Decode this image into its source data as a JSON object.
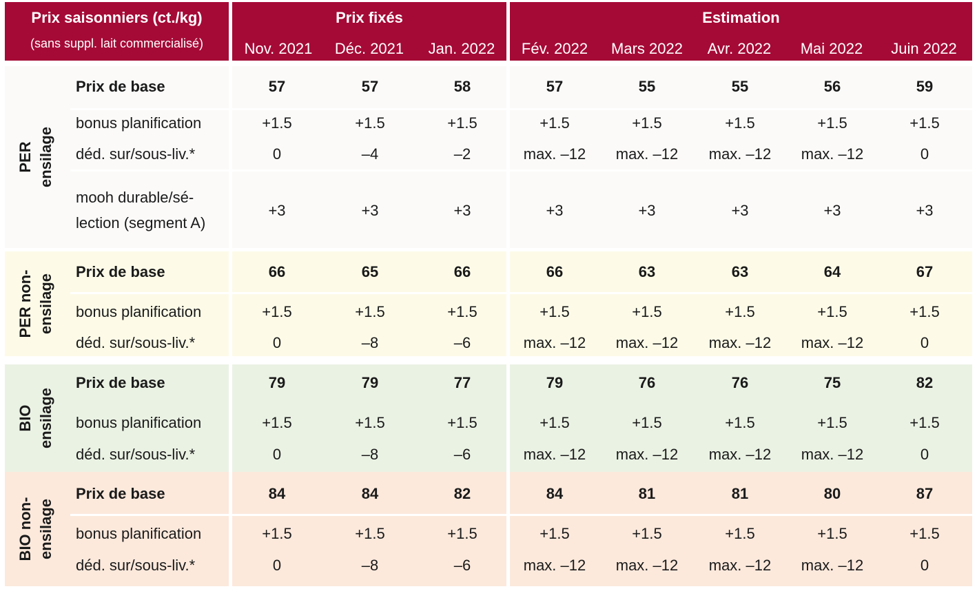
{
  "header": {
    "title": "Prix saisonniers (ct./kg)",
    "subtitle": "(sans suppl. lait commercialisé)",
    "fixed_label": "Prix fixés",
    "estimate_label": "Estimation",
    "months": [
      "Nov. 2021",
      "Déc. 2021",
      "Jan. 2022",
      "Fév. 2022",
      "Mars 2022",
      "Avr. 2022",
      "Mai 2022",
      "Juin 2022"
    ],
    "color": "#a50a36"
  },
  "groups": [
    {
      "label_line1": "PER",
      "label_line2": "ensilage",
      "color": "#fbfaf9",
      "rows": [
        {
          "label": "Prix de base",
          "bold": true,
          "values": [
            "57",
            "57",
            "58",
            "57",
            "55",
            "55",
            "56",
            "59"
          ]
        },
        {
          "label": "bonus planification",
          "bold": false,
          "values": [
            "+1.5",
            "+1.5",
            "+1.5",
            "+1.5",
            "+1.5",
            "+1.5",
            "+1.5",
            "+1.5"
          ]
        },
        {
          "label": "déd. sur/sous-liv.*",
          "bold": false,
          "values": [
            "0",
            "–4",
            "–2",
            "max. –12",
            "max. –12",
            "max. –12",
            "max. –12",
            "0"
          ]
        },
        {
          "label_line1": "mooh durable/sé-",
          "label_line2": "lection (segment A)",
          "bold": false,
          "values": [
            "+3",
            "+3",
            "+3",
            "+3",
            "+3",
            "+3",
            "+3",
            "+3"
          ]
        }
      ]
    },
    {
      "label_line1": "PER non-",
      "label_line2": "ensilage",
      "color": "#fdfbe8",
      "rows": [
        {
          "label": "Prix de base",
          "bold": true,
          "values": [
            "66",
            "65",
            "66",
            "66",
            "63",
            "63",
            "64",
            "67"
          ]
        },
        {
          "label": "bonus planification",
          "bold": false,
          "values": [
            "+1.5",
            "+1.5",
            "+1.5",
            "+1.5",
            "+1.5",
            "+1.5",
            "+1.5",
            "+1.5"
          ]
        },
        {
          "label": "déd. sur/sous-liv.*",
          "bold": false,
          "values": [
            "0",
            "–8",
            "–6",
            "max. –12",
            "max. –12",
            "max. –12",
            "max. –12",
            "0"
          ]
        }
      ]
    },
    {
      "label_line1": "BIO",
      "label_line2": "ensilage",
      "color": "#eaf2e4",
      "rows": [
        {
          "label": "Prix de base",
          "bold": true,
          "values": [
            "79",
            "79",
            "77",
            "79",
            "76",
            "76",
            "75",
            "82"
          ]
        },
        {
          "label": "bonus planification",
          "bold": false,
          "values": [
            "+1.5",
            "+1.5",
            "+1.5",
            "+1.5",
            "+1.5",
            "+1.5",
            "+1.5",
            "+1.5"
          ]
        },
        {
          "label": "déd. sur/sous-liv.*",
          "bold": false,
          "values": [
            "0",
            "–8",
            "–6",
            "max. –12",
            "max. –12",
            "max. –12",
            "max. –12",
            "0"
          ]
        }
      ]
    },
    {
      "label_line1": "BIO non-",
      "label_line2": "ensilage",
      "color": "#fce9dc",
      "rows": [
        {
          "label": "Prix de base",
          "bold": true,
          "values": [
            "84",
            "84",
            "82",
            "84",
            "81",
            "81",
            "80",
            "87"
          ]
        },
        {
          "label": "bonus planification",
          "bold": false,
          "values": [
            "+1.5",
            "+1.5",
            "+1.5",
            "+1.5",
            "+1.5",
            "+1.5",
            "+1.5",
            "+1.5"
          ]
        },
        {
          "label": "déd. sur/sous-liv.*",
          "bold": false,
          "values": [
            "0",
            "–8",
            "–6",
            "max. –12",
            "max. –12",
            "max. –12",
            "max. –12",
            "0"
          ]
        }
      ]
    }
  ]
}
